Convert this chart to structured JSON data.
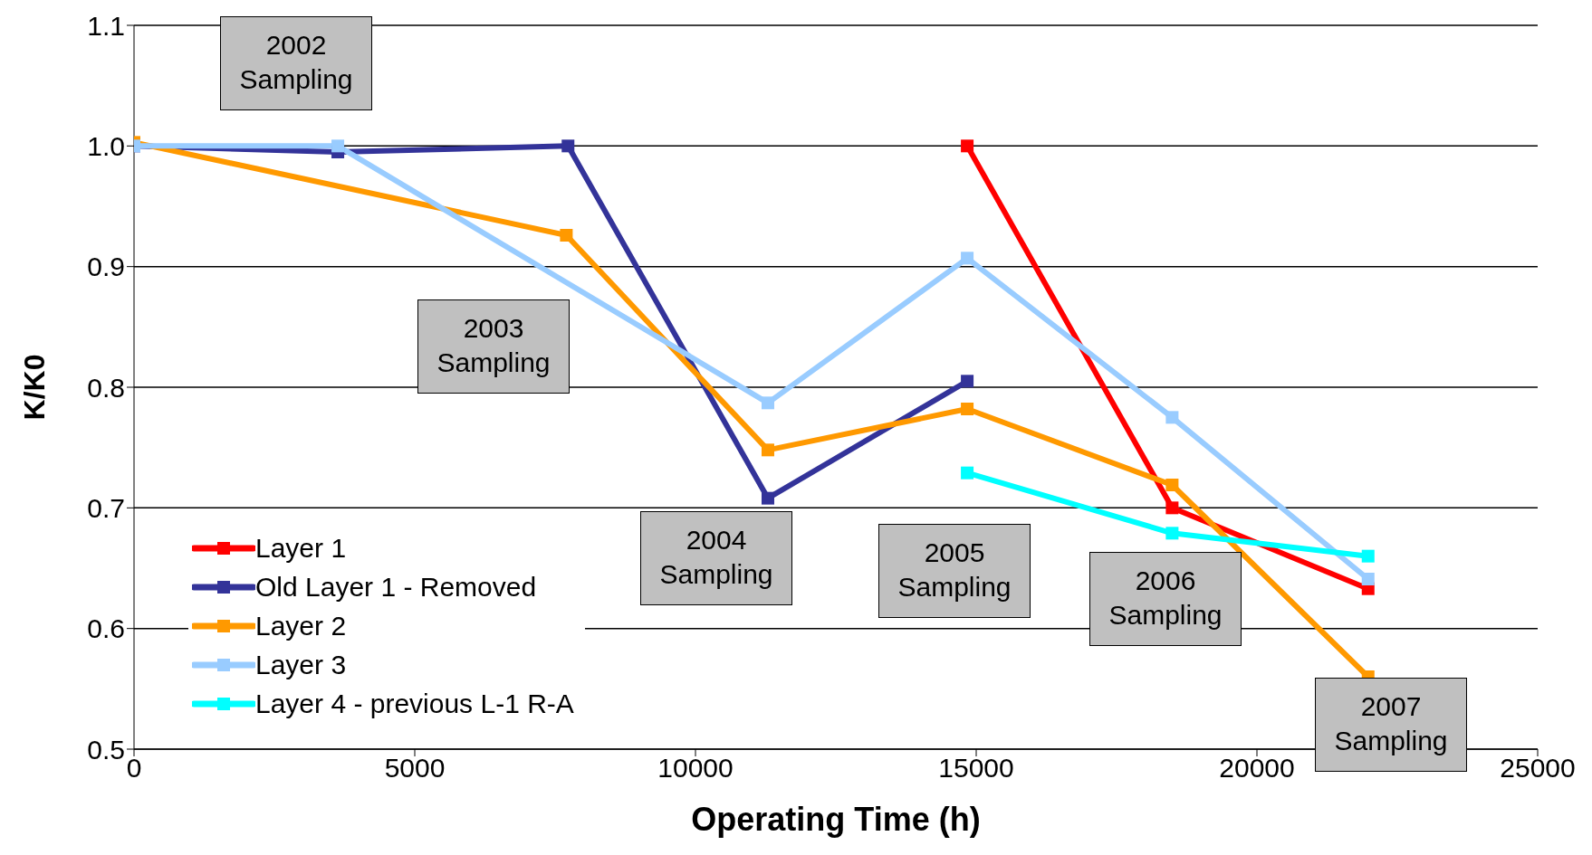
{
  "chart_data": {
    "type": "line",
    "xlabel": "Operating Time (h)",
    "ylabel": "K/K0",
    "xlim": [
      0,
      25000
    ],
    "xticks": [
      0,
      5000,
      10000,
      15000,
      20000,
      25000
    ],
    "ylim": [
      0.5,
      1.1
    ],
    "yticks": [
      0.5,
      0.6,
      0.7,
      0.8,
      0.9,
      {
        "value": 1,
        "label": "1.0"
      },
      1.1
    ],
    "grid": "y",
    "legend": "bottom left",
    "marker": "square",
    "line_style": "solid",
    "series": [
      {
        "name": "Layer 1",
        "color": "#ff0000",
        "x": [
          14840,
          18490,
          21980
        ],
        "values": [
          1.0,
          0.7,
          0.633
        ]
      },
      {
        "name": "Old Layer 1 - Removed",
        "color": "#333399",
        "x": [
          0,
          3630,
          7730,
          11290,
          14840
        ],
        "values": [
          1.0,
          0.995,
          1.0,
          0.708,
          0.805
        ]
      },
      {
        "name": "Layer 2",
        "color": "#ff9900",
        "x": [
          0,
          7700,
          11290,
          14840,
          18490,
          21980
        ],
        "values": [
          1.003,
          0.926,
          0.748,
          0.782,
          0.719,
          0.56
        ]
      },
      {
        "name": "Layer 3",
        "color": "#99ccff",
        "x": [
          0,
          3630,
          11290,
          14840,
          18490,
          21980
        ],
        "values": [
          1.0,
          1.0,
          0.787,
          0.907,
          0.775,
          0.641
        ]
      },
      {
        "name": "Layer 4 - previous L-1 R-A",
        "color": "#00ffff",
        "x": [
          14840,
          18490,
          21980
        ],
        "values": [
          0.729,
          0.679,
          0.66
        ]
      }
    ],
    "annotations": [
      "2002 Sampling",
      "2003 Sampling",
      "2004 Sampling",
      "2005 Sampling",
      "2006 Sampling",
      "2007 Sampling"
    ]
  }
}
